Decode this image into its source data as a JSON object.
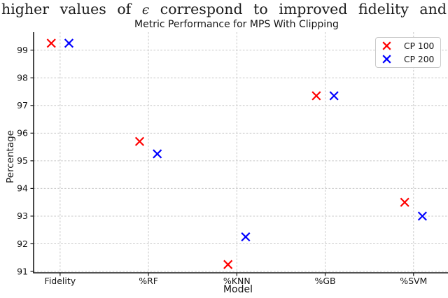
{
  "headline": {
    "text": "higher values of ϵ correspond to improved fidelity and",
    "italic_word": "ϵ"
  },
  "chart_data": {
    "type": "scatter",
    "title": "Metric Performance for MPS With Clipping",
    "xlabel": "Model",
    "ylabel": "Percentage",
    "categories": [
      "Fidelity",
      "%RF",
      "%KNN",
      "%GB",
      "%SVM"
    ],
    "series": [
      {
        "name": "CP 100",
        "color": "#ff0000",
        "marker": "x",
        "offset": -0.1,
        "values": [
          99.25,
          95.7,
          91.25,
          97.35,
          93.5
        ]
      },
      {
        "name": "CP 200",
        "color": "#0000ff",
        "marker": "x",
        "offset": 0.1,
        "values": [
          99.25,
          95.25,
          92.25,
          97.35,
          93.0
        ]
      }
    ],
    "yticks": [
      91,
      92,
      93,
      94,
      95,
      96,
      97,
      98,
      99
    ],
    "ylim": [
      90.95,
      99.65
    ],
    "xlim": [
      -0.3,
      4.39
    ],
    "grid": true,
    "grid_style": "dashed",
    "legend_position": "upper right",
    "spines_visible": [
      "left",
      "bottom"
    ]
  }
}
